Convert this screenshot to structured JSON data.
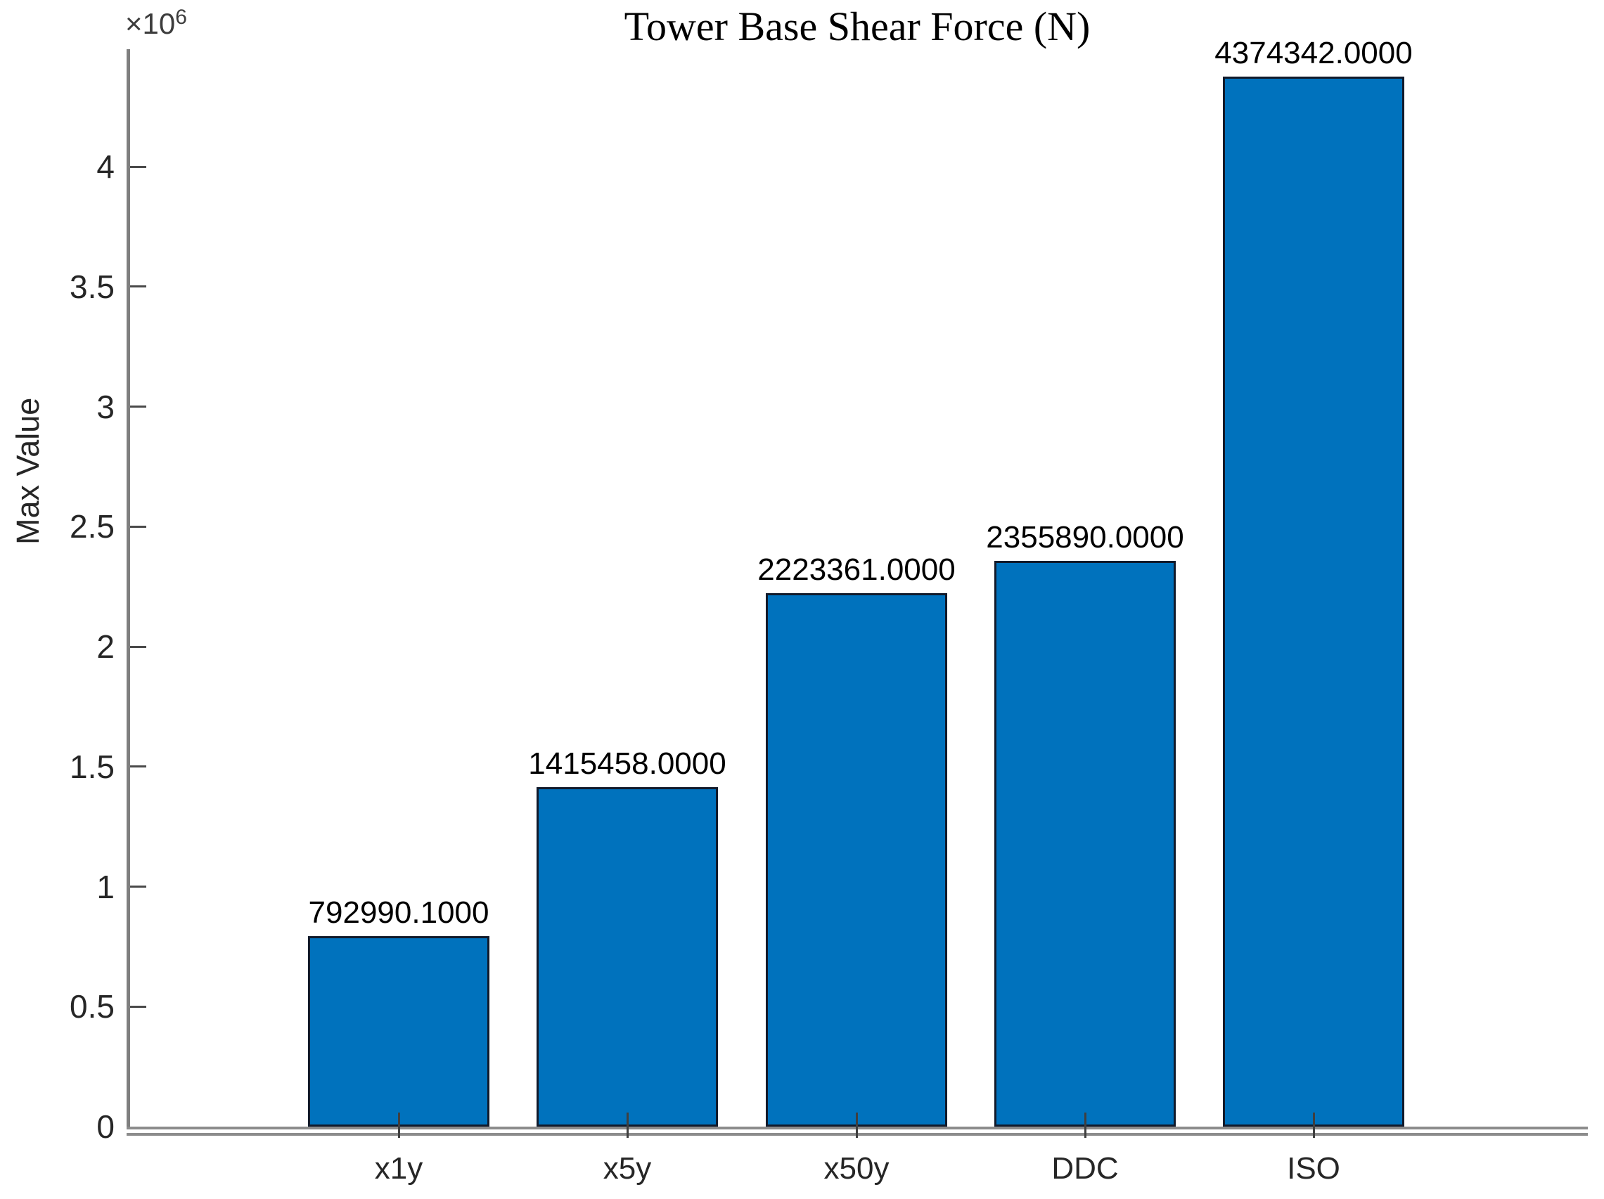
{
  "y_axis_multiplier": {
    "base": "×10",
    "exponent": "6"
  },
  "chart_data": {
    "type": "bar",
    "title": "Tower Base Shear Force (N)",
    "xlabel": "",
    "ylabel": "Max Value",
    "categories": [
      "x1y",
      "x5y",
      "x50y",
      "DDC",
      "ISO"
    ],
    "values": [
      792990.1,
      1415458,
      2223361,
      2355890,
      4374342
    ],
    "value_labels": [
      "792990.1000",
      "1415458.0000",
      "2223361.0000",
      "2355890.0000",
      "4374342.0000"
    ],
    "ylim": [
      0,
      4489000
    ],
    "ytick_values": [
      0,
      500000,
      1000000,
      1500000,
      2000000,
      2500000,
      3000000,
      3500000,
      4000000
    ],
    "ytick_labels": [
      "0",
      "0.5",
      "1",
      "1.5",
      "2",
      "2.5",
      "3",
      "3.5",
      "4"
    ],
    "y_unit_multiplier": 1000000,
    "grid": false,
    "legend": null,
    "bar_color": "#0072BD",
    "bar_edge_color": "#111a2b",
    "axis_color": "#8c8c8c"
  }
}
